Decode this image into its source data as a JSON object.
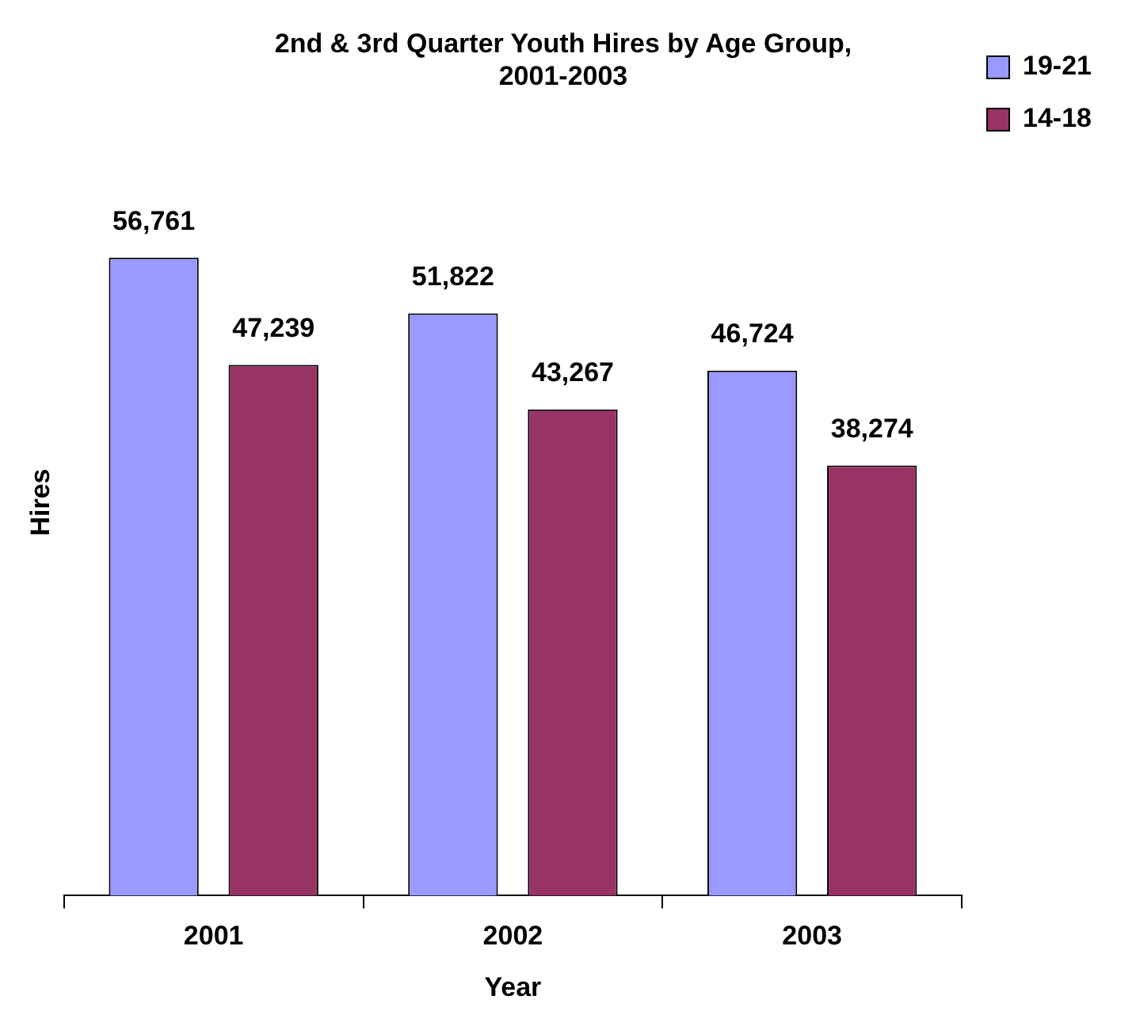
{
  "chart_data": {
    "type": "bar",
    "title": [
      "2nd & 3rd Quarter Youth Hires by Age Group,",
      "2001-2003"
    ],
    "xlabel": "Year",
    "ylabel": "Hires",
    "categories": [
      "2001",
      "2002",
      "2003"
    ],
    "series": [
      {
        "name": "19-21",
        "color": "#9999ff",
        "values": [
          56761,
          51822,
          46724
        ],
        "value_labels": [
          "56,761",
          "51,822",
          "46,724"
        ]
      },
      {
        "name": "14-18",
        "color": "#993366",
        "values": [
          47239,
          43267,
          38274
        ],
        "value_labels": [
          "47,239",
          "43,267",
          "38,274"
        ]
      }
    ],
    "grid": false,
    "legend": "top right",
    "tick_labels": "x"
  }
}
